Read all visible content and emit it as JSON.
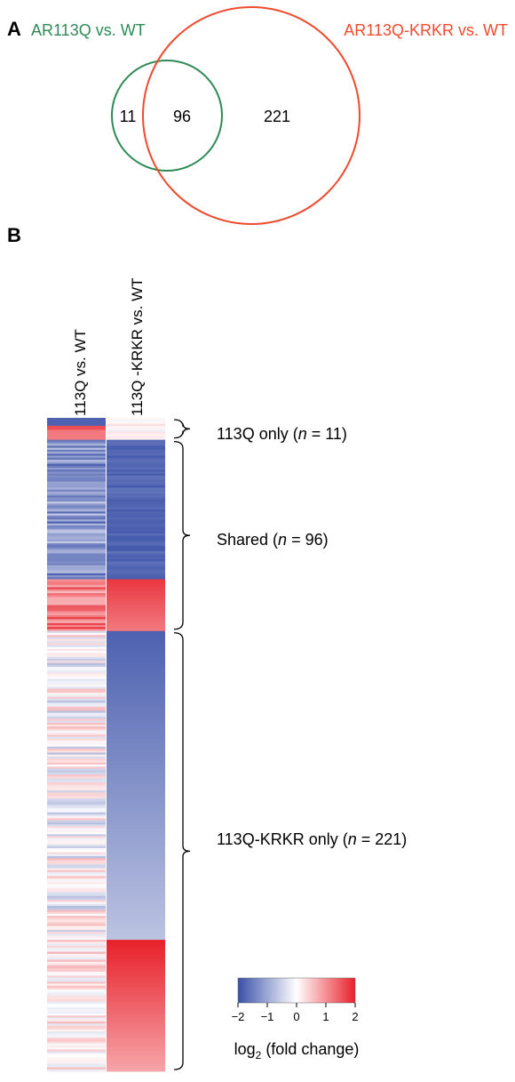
{
  "chart_data": [
    {
      "panel": "A",
      "type": "venn",
      "sets": [
        {
          "name": "AR113Q vs. WT",
          "color": "#2e8b57"
        },
        {
          "name": "AR113Q-KRKR vs. WT",
          "color": "#f04a2e"
        }
      ],
      "regions": {
        "only_first": "11",
        "shared": "96",
        "only_second": "221"
      }
    },
    {
      "panel": "B",
      "type": "heatmap",
      "columns": [
        "113Q vs. WT",
        "113Q -KRKR vs. WT"
      ],
      "colorscale": {
        "min": -2,
        "max": 2,
        "low": "#3a50a8",
        "mid": "#ffffff",
        "high": "#e8202a",
        "ticks": [
          "−2",
          "−1",
          "0",
          "1",
          "2"
        ]
      },
      "legend_title_main": "log",
      "legend_title_sub": "2",
      "legend_title_rest": " (fold change)",
      "groups": [
        {
          "label": "113Q only (",
          "n_symbol": "n",
          "n_text": " = 11)",
          "rows": 11
        },
        {
          "label": "Shared (",
          "n_symbol": "n",
          "n_text": " = 96)",
          "rows": 96
        },
        {
          "label": "113Q-KRKR only (",
          "n_symbol": "n",
          "n_text": " = 221)",
          "rows": 221
        }
      ]
    }
  ]
}
